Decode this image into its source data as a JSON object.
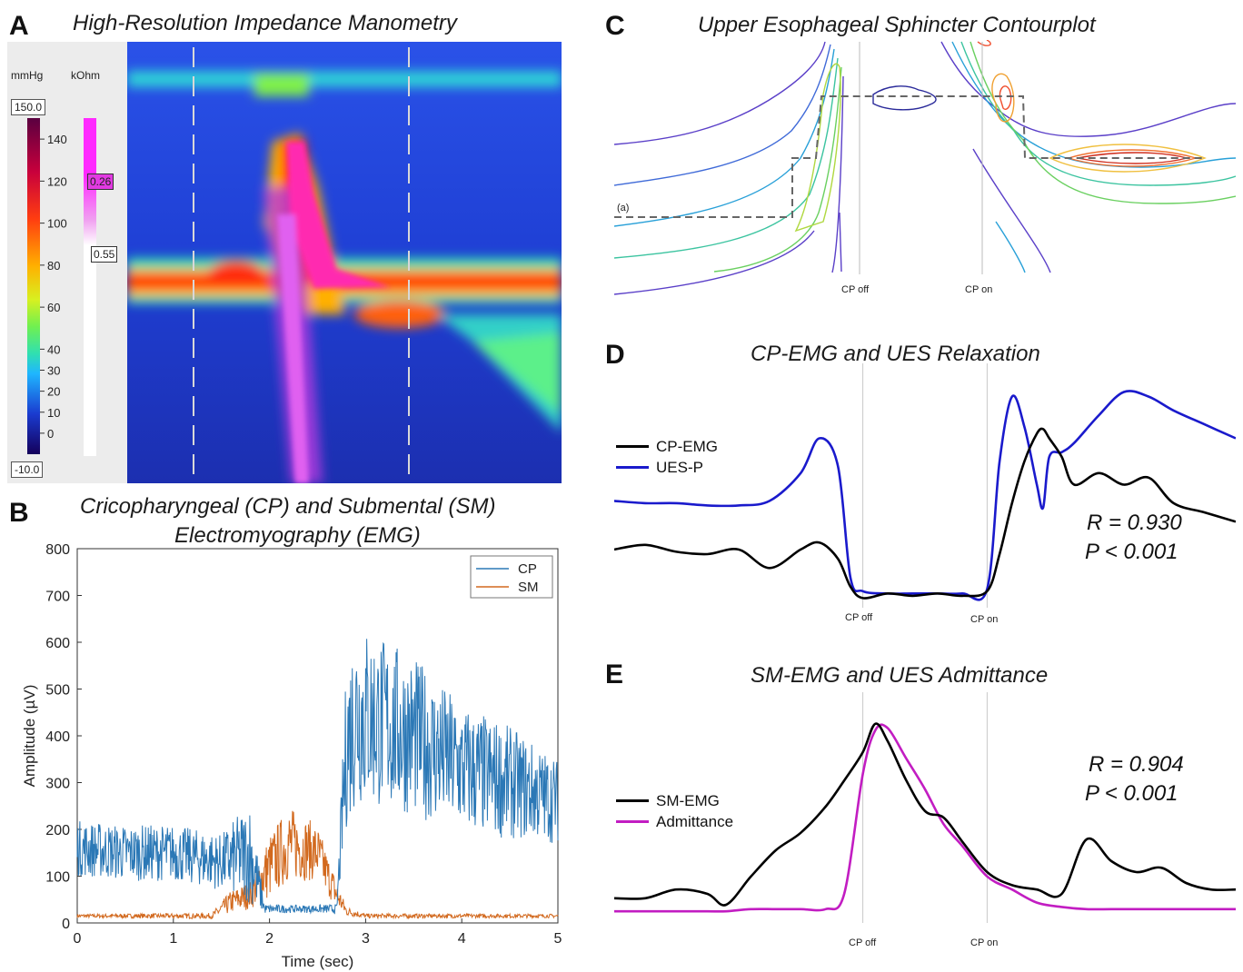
{
  "panel_a": {
    "letter": "A",
    "title": "High-Resolution Impedance Manometry",
    "pressure_unit": "mmHg",
    "impedance_unit": "kOhm",
    "pressure_max": "150.0",
    "pressure_min": "-10.0",
    "pressure_ticks": [
      "140",
      "120",
      "100",
      "80",
      "60",
      "40",
      "30",
      "20",
      "10",
      "0"
    ],
    "impedance_high": "0.26",
    "impedance_low": "0.55"
  },
  "panel_b": {
    "letter": "B",
    "title_line1": "Cricopharyngeal (CP) and Submental (SM)",
    "title_line2": "Electromyography (EMG)"
  },
  "panel_c": {
    "letter": "C",
    "title": "Upper Esophageal Sphincter Contourplot",
    "marker_a": "(a)",
    "cp_off": "CP off",
    "cp_on": "CP on"
  },
  "panel_d": {
    "letter": "D",
    "title": "CP-EMG and UES Relaxation",
    "legend": [
      "CP-EMG",
      "UES-P"
    ],
    "stat_r": "R = 0.930",
    "stat_p": "P < 0.001",
    "cp_off": "CP off",
    "cp_on": "CP on"
  },
  "panel_e": {
    "letter": "E",
    "title": "SM-EMG and UES Admittance",
    "legend": [
      "SM-EMG",
      "Admittance"
    ],
    "stat_r": "R = 0.904",
    "stat_p": "P < 0.001",
    "cp_off": "CP off",
    "cp_on": "CP on"
  },
  "chart_data": [
    {
      "panel": "A",
      "type": "heatmap",
      "title": "High-Resolution Impedance Manometry",
      "colorbar": {
        "label": "mmHg",
        "min": -10,
        "max": 150,
        "ticks": [
          140,
          120,
          100,
          80,
          60,
          40,
          30,
          20,
          10,
          0
        ]
      },
      "impedance_bar": {
        "label": "kOhm",
        "values": [
          0.26,
          0.55
        ]
      },
      "colors": {
        "background": "#1c3dd6",
        "high_pressure": "#e8132c",
        "peak": "#ff2aa8",
        "impedance": "#d419e0"
      }
    },
    {
      "panel": "B",
      "type": "line",
      "xlabel": "Time (sec)",
      "ylabel": "Amplitude (µV)",
      "xlim": [
        0,
        5
      ],
      "ylim": [
        0,
        800
      ],
      "xticks": [
        0,
        1,
        2,
        3,
        4,
        5
      ],
      "yticks": [
        0,
        100,
        200,
        300,
        400,
        500,
        600,
        700,
        800
      ],
      "legend_position": "top-right",
      "series": [
        {
          "name": "CP",
          "color": "#2b78b6",
          "envelope": {
            "x": [
              0,
              0.5,
              1.0,
              1.5,
              1.8,
              1.95,
              2.3,
              2.7,
              2.8,
              2.9,
              3.5,
              4.0,
              4.5,
              5.0
            ],
            "center": [
              160,
              150,
              150,
              130,
              150,
              30,
              30,
              30,
              380,
              450,
              400,
              330,
              300,
              260
            ],
            "amplitude": [
              60,
              60,
              60,
              60,
              110,
              10,
              8,
              10,
              180,
              200,
              170,
              140,
              120,
              90
            ]
          }
        },
        {
          "name": "SM",
          "color": "#d2691e",
          "envelope": {
            "x": [
              0,
              1.4,
              1.6,
              1.8,
              2.0,
              2.2,
              2.5,
              2.7,
              2.8,
              3.0,
              5.0
            ],
            "center": [
              15,
              15,
              45,
              60,
              120,
              170,
              150,
              60,
              25,
              15,
              15
            ],
            "amplitude": [
              4,
              6,
              25,
              30,
              70,
              80,
              60,
              30,
              10,
              5,
              4
            ]
          }
        }
      ]
    },
    {
      "panel": "C",
      "type": "heatmap",
      "title": "Upper Esophageal Sphincter Contourplot",
      "annotations": [
        "(a)",
        "CP off",
        "CP on"
      ]
    },
    {
      "panel": "D",
      "type": "line",
      "title": "CP-EMG and UES Relaxation",
      "x": [
        0,
        5,
        10,
        15,
        20,
        25,
        30,
        33,
        36,
        38,
        40,
        44,
        48,
        52,
        56,
        60,
        62,
        64,
        66,
        68,
        69,
        70,
        72,
        74,
        78,
        82,
        86,
        90,
        95,
        100
      ],
      "series": [
        {
          "name": "CP-EMG",
          "color": "#000000",
          "values": [
            22,
            24,
            21,
            20,
            22,
            14,
            22,
            25,
            18,
            6,
            1,
            3,
            2,
            3,
            2,
            4,
            20,
            42,
            60,
            72,
            74,
            70,
            62,
            50,
            55,
            50,
            53,
            42,
            38,
            34
          ]
        },
        {
          "name": "UES-P",
          "color": "#1a1acc",
          "values": [
            43,
            42,
            42,
            41,
            41,
            43,
            55,
            70,
            58,
            10,
            4,
            3,
            3,
            3,
            3,
            5,
            60,
            88,
            75,
            50,
            40,
            62,
            64,
            68,
            80,
            90,
            88,
            82,
            76,
            70
          ]
        }
      ],
      "stats": {
        "R": 0.93,
        "P": "< 0.001"
      },
      "legend_position": "left"
    },
    {
      "panel": "E",
      "type": "line",
      "title": "SM-EMG and UES Admittance",
      "x": [
        0,
        5,
        10,
        15,
        18,
        22,
        26,
        30,
        34,
        37,
        40,
        42,
        44,
        47,
        50,
        53,
        56,
        60,
        64,
        68,
        72,
        76,
        80,
        84,
        88,
        92,
        96,
        100
      ],
      "series": [
        {
          "name": "SM-EMG",
          "color": "#000000",
          "values": [
            8,
            8,
            12,
            10,
            5,
            18,
            30,
            38,
            50,
            62,
            75,
            88,
            80,
            62,
            48,
            45,
            34,
            20,
            14,
            12,
            10,
            35,
            25,
            20,
            22,
            15,
            12,
            12
          ]
        },
        {
          "name": "Admittance",
          "color": "#c21dc2",
          "values": [
            2,
            2,
            2,
            2,
            2,
            3,
            3,
            3,
            3,
            10,
            65,
            85,
            86,
            72,
            58,
            42,
            32,
            18,
            12,
            6,
            4,
            3,
            3,
            3,
            3,
            3,
            3,
            3
          ]
        }
      ],
      "stats": {
        "R": 0.904,
        "P": "< 0.001"
      },
      "legend_position": "left"
    }
  ]
}
